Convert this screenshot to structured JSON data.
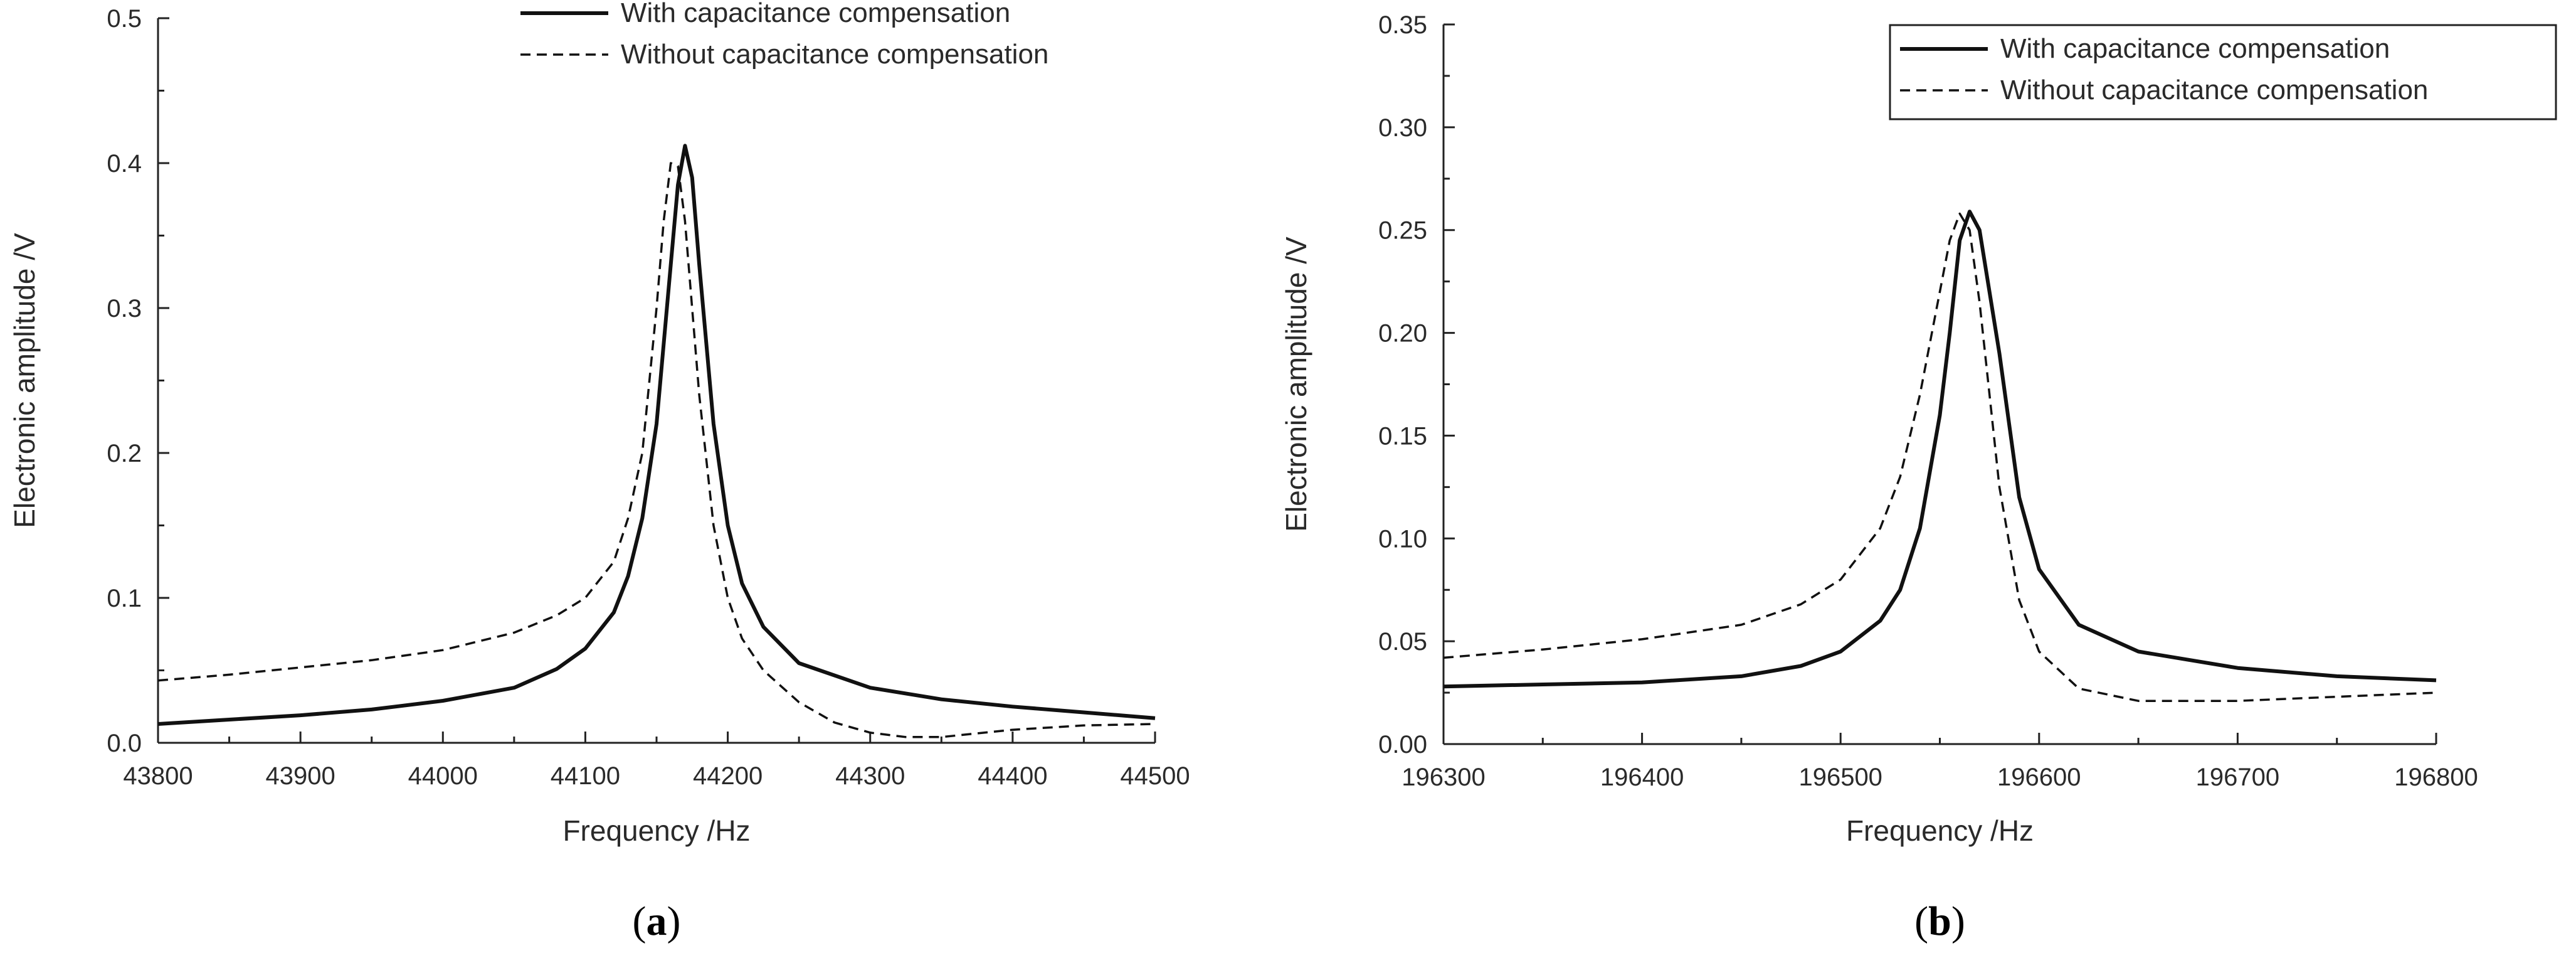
{
  "chart_data": [
    {
      "type": "line",
      "panel_label": "a",
      "xlabel": "Frequency /Hz",
      "ylabel": "Electronic amplitude /V",
      "xlim": [
        43800,
        44500
      ],
      "ylim": [
        0,
        0.5
      ],
      "xticks": [
        "43800",
        "43900",
        "44000",
        "44100",
        "44200",
        "44300",
        "44400",
        "44500"
      ],
      "yticks": [
        "0.0",
        "0.1",
        "0.2",
        "0.3",
        "0.4",
        "0.5"
      ],
      "legend_position": "top-right",
      "legend_boxed": false,
      "series": [
        {
          "name": "With capacitance compensation",
          "style": "solid",
          "x": [
            43800,
            43850,
            43900,
            43950,
            44000,
            44050,
            44080,
            44100,
            44120,
            44130,
            44140,
            44150,
            44160,
            44165,
            44170,
            44175,
            44180,
            44190,
            44200,
            44210,
            44225,
            44250,
            44300,
            44350,
            44400,
            44450,
            44500
          ],
          "y": [
            0.013,
            0.016,
            0.019,
            0.023,
            0.029,
            0.038,
            0.051,
            0.065,
            0.09,
            0.115,
            0.155,
            0.22,
            0.33,
            0.385,
            0.412,
            0.39,
            0.33,
            0.22,
            0.15,
            0.11,
            0.08,
            0.055,
            0.038,
            0.03,
            0.025,
            0.021,
            0.017
          ]
        },
        {
          "name": "Without capacitance compensation",
          "style": "dashed",
          "x": [
            43800,
            43850,
            43900,
            43950,
            44000,
            44050,
            44080,
            44100,
            44120,
            44130,
            44140,
            44150,
            44155,
            44160,
            44165,
            44170,
            44180,
            44190,
            44200,
            44210,
            44225,
            44250,
            44275,
            44300,
            44325,
            44350,
            44400,
            44450,
            44500
          ],
          "y": [
            0.043,
            0.047,
            0.052,
            0.057,
            0.064,
            0.076,
            0.088,
            0.1,
            0.125,
            0.155,
            0.2,
            0.3,
            0.36,
            0.4,
            0.398,
            0.36,
            0.24,
            0.15,
            0.1,
            0.072,
            0.05,
            0.028,
            0.014,
            0.007,
            0.004,
            0.004,
            0.009,
            0.012,
            0.013
          ]
        }
      ]
    },
    {
      "type": "line",
      "panel_label": "b",
      "xlabel": "Frequency /Hz",
      "ylabel": "Electronic amplitude /V",
      "xlim": [
        196300,
        196800
      ],
      "ylim": [
        0,
        0.35
      ],
      "xticks": [
        "196300",
        "196400",
        "196500",
        "196600",
        "196700",
        "196800"
      ],
      "yticks": [
        "0.00",
        "0.05",
        "0.10",
        "0.15",
        "0.20",
        "0.25",
        "0.30",
        "0.35"
      ],
      "legend_position": "top-right",
      "legend_boxed": true,
      "series": [
        {
          "name": "With capacitance compensation",
          "style": "solid",
          "x": [
            196300,
            196350,
            196400,
            196450,
            196480,
            196500,
            196520,
            196530,
            196540,
            196550,
            196555,
            196560,
            196565,
            196570,
            196580,
            196590,
            196600,
            196620,
            196650,
            196700,
            196750,
            196800
          ],
          "y": [
            0.028,
            0.029,
            0.03,
            0.033,
            0.038,
            0.045,
            0.06,
            0.075,
            0.105,
            0.16,
            0.2,
            0.245,
            0.259,
            0.25,
            0.19,
            0.12,
            0.085,
            0.058,
            0.045,
            0.037,
            0.033,
            0.031
          ]
        },
        {
          "name": "Without capacitance compensation",
          "style": "dashed",
          "x": [
            196300,
            196350,
            196400,
            196450,
            196480,
            196500,
            196520,
            196530,
            196540,
            196550,
            196555,
            196560,
            196565,
            196570,
            196575,
            196580,
            196590,
            196600,
            196620,
            196650,
            196700,
            196750,
            196800
          ],
          "y": [
            0.042,
            0.046,
            0.051,
            0.058,
            0.068,
            0.08,
            0.105,
            0.13,
            0.17,
            0.22,
            0.245,
            0.258,
            0.25,
            0.215,
            0.17,
            0.125,
            0.07,
            0.045,
            0.027,
            0.021,
            0.021,
            0.023,
            0.025
          ]
        }
      ]
    }
  ]
}
